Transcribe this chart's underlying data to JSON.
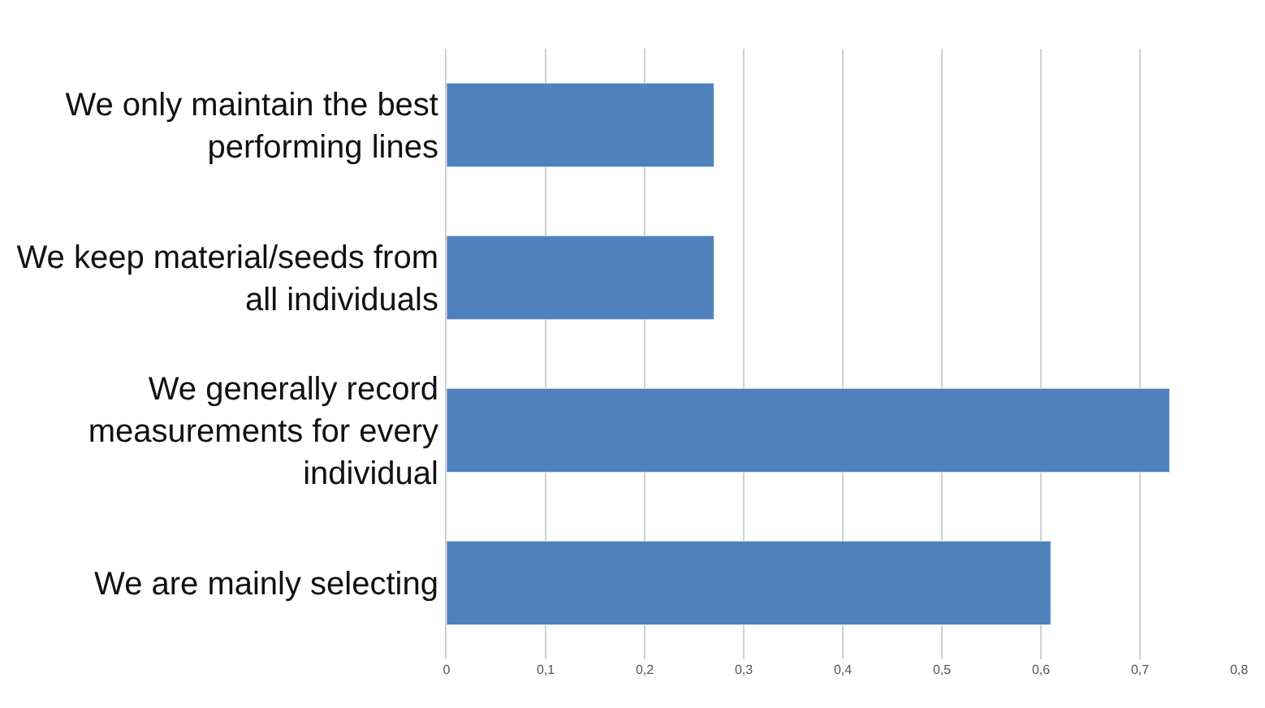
{
  "chart_data": {
    "type": "bar",
    "orientation": "horizontal",
    "categories": [
      "We only maintain the best performing lines",
      "We keep material/seeds from all individuals",
      "We generally record measurements for every individual",
      "We are mainly selecting"
    ],
    "values": [
      0.27,
      0.27,
      0.73,
      0.61
    ],
    "color": "#4f81bd",
    "xlim": [
      0,
      0.8
    ],
    "xticks": [
      0,
      {
        "value": 0.1,
        "label": "0,1"
      },
      {
        "value": 0.2,
        "label": "0,2"
      },
      {
        "value": 0.3,
        "label": "0,3"
      },
      {
        "value": 0.4,
        "label": "0,4"
      },
      {
        "value": 0.5,
        "label": "0,5"
      },
      {
        "value": 0.6,
        "label": "0,6"
      },
      {
        "value": 0.7,
        "label": "0,7"
      },
      {
        "value": 0.8,
        "label": "0,8"
      }
    ],
    "grid": "x"
  }
}
